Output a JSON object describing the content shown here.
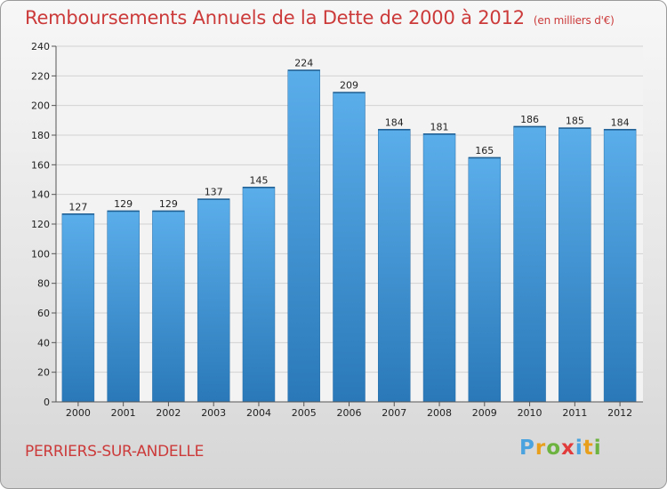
{
  "title": "Remboursements Annuels de la Dette de 2000 à 2012",
  "subtitle": "(en milliers d'€)",
  "commune": "PERRIERS-SUR-ANDELLE",
  "logo": {
    "text": "Proxiti",
    "letters": [
      {
        "char": "P",
        "color": "#4aa3df"
      },
      {
        "char": "r",
        "color": "#e8a01c"
      },
      {
        "char": "o",
        "color": "#6cb33f"
      },
      {
        "char": "x",
        "color": "#e23b3b"
      },
      {
        "char": "i",
        "color": "#4aa3df"
      },
      {
        "char": "t",
        "color": "#e8a01c"
      },
      {
        "char": "i",
        "color": "#6cb33f"
      }
    ]
  },
  "colors": {
    "title": "#cc3a3a",
    "bar_top": "#5aaeea",
    "bar_bottom": "#2a78b8"
  },
  "chart_data": {
    "type": "bar",
    "title": "Remboursements Annuels de la Dette de 2000 à 2012",
    "xlabel": "",
    "ylabel": "",
    "unit": "en milliers d'€",
    "categories": [
      "2000",
      "2001",
      "2002",
      "2003",
      "2004",
      "2005",
      "2006",
      "2007",
      "2008",
      "2009",
      "2010",
      "2011",
      "2012"
    ],
    "values": [
      127,
      129,
      129,
      137,
      145,
      224,
      209,
      184,
      181,
      165,
      186,
      185,
      184
    ],
    "ylim": [
      0,
      240
    ],
    "yticks": [
      0,
      20,
      40,
      60,
      80,
      100,
      120,
      140,
      160,
      180,
      200,
      220,
      240
    ],
    "grid": true,
    "legend": "none"
  }
}
